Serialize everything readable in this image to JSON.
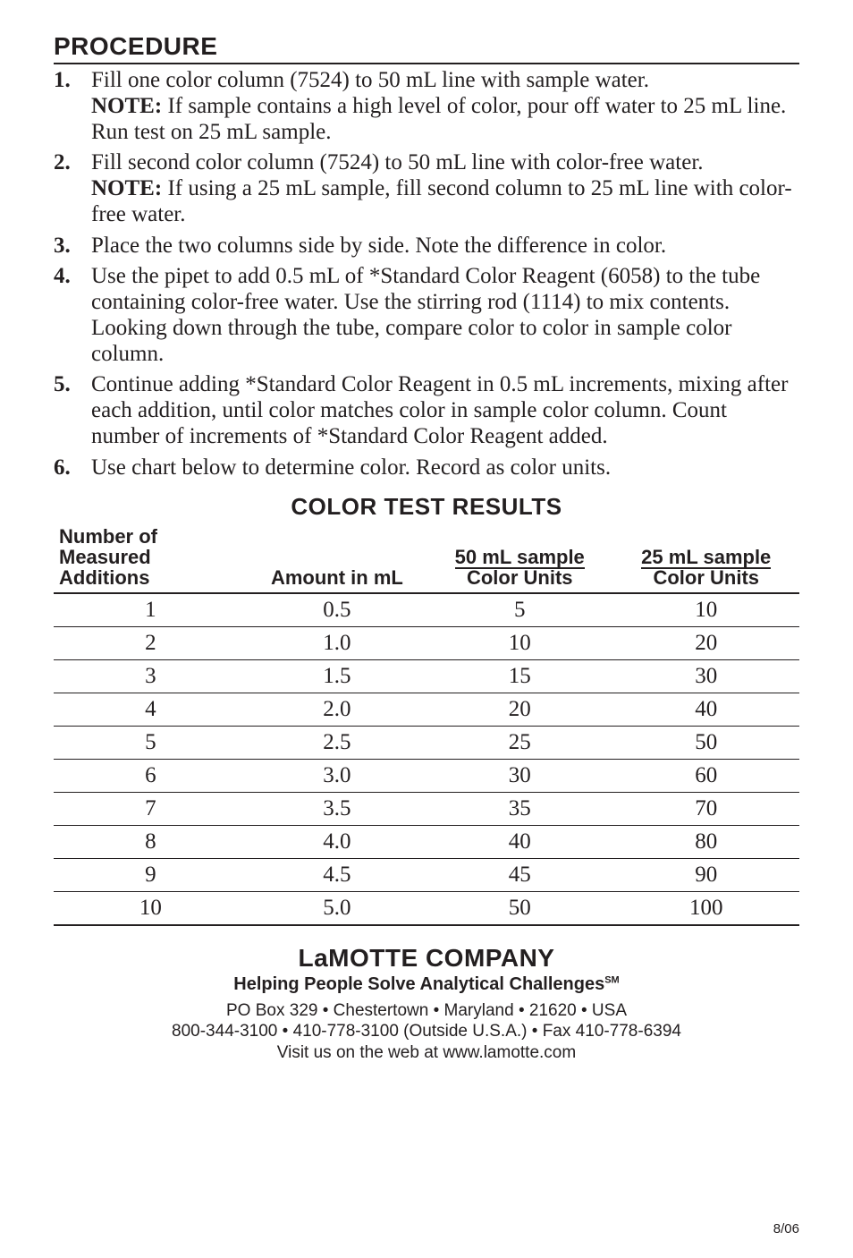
{
  "colors": {
    "text": "#231f20",
    "background": "#ffffff",
    "rule": "#231f20"
  },
  "typography": {
    "heading_font": "Arial Black",
    "body_font": "Georgia",
    "sans_font": "Helvetica",
    "heading_size_pt": 21,
    "body_size_pt": 19,
    "table_header_size_pt": 17
  },
  "section_heading": "PROCEDURE",
  "steps": [
    {
      "num": "1.",
      "text": "Fill one color column (7524) to 50 mL line with sample water.",
      "note_label": "NOTE:",
      "note_text": " If sample contains a high level of color, pour off water to 25 mL line. Run test on 25 mL sample."
    },
    {
      "num": "2.",
      "text": "Fill second color column (7524) to 50 mL line with color-free water.",
      "note_label": "NOTE:",
      "note_text": " If using a 25 mL sample, fill second column to 25 mL line with color-free water."
    },
    {
      "num": "3.",
      "text": "Place the two columns side by side. Note the difference in color."
    },
    {
      "num": "4.",
      "text": "Use the pipet to add 0.5 mL of *Standard Color Reagent (6058) to the tube containing color-free water. Use the stirring rod (1114) to mix contents. Looking down through the tube, compare color to color in sample color column."
    },
    {
      "num": "5.",
      "text": "Continue adding *Standard Color Reagent in 0.5 mL increments, mixing after each addition, until color matches color in sample color column. Count number of increments of *Standard Color Reagent added."
    },
    {
      "num": "6.",
      "text": "Use chart below to determine color. Record as color units."
    }
  ],
  "table": {
    "title": "COLOR TEST RESULTS",
    "headers": {
      "col1_line1": "Number of",
      "col1_line2": "Measured",
      "col1_line3": "Additions",
      "col2": "Amount in mL",
      "col3_top": "50 mL sample",
      "col3_bottom": "Color Units",
      "col4_top": "25 mL sample",
      "col4_bottom": "Color Units"
    },
    "column_widths_pct": [
      26,
      24,
      25,
      25
    ],
    "rows": [
      {
        "n": "1",
        "amt": "0.5",
        "c50": "5",
        "c25": "10"
      },
      {
        "n": "2",
        "amt": "1.0",
        "c50": "10",
        "c25": "20"
      },
      {
        "n": "3",
        "amt": "1.5",
        "c50": "15",
        "c25": "30"
      },
      {
        "n": "4",
        "amt": "2.0",
        "c50": "20",
        "c25": "40"
      },
      {
        "n": "5",
        "amt": "2.5",
        "c50": "25",
        "c25": "50"
      },
      {
        "n": "6",
        "amt": "3.0",
        "c50": "30",
        "c25": "60"
      },
      {
        "n": "7",
        "amt": "3.5",
        "c50": "35",
        "c25": "70"
      },
      {
        "n": "8",
        "amt": "4.0",
        "c50": "40",
        "c25": "80"
      },
      {
        "n": "9",
        "amt": "4.5",
        "c50": "45",
        "c25": "90"
      },
      {
        "n": "10",
        "amt": "5.0",
        "c50": "50",
        "c25": "100"
      }
    ]
  },
  "footer": {
    "company": "LaMOTTE COMPANY",
    "tagline_main": "Helping People Solve Analytical Challenges",
    "tagline_sm": "SM",
    "contact_line1": "PO Box 329 • Chestertown • Maryland • 21620 • USA",
    "contact_line2": "800-344-3100 • 410-778-3100 (Outside U.S.A.) • Fax 410-778-6394",
    "contact_line3": "Visit us on the web at www.lamotte.com",
    "page_date": "8/06"
  }
}
